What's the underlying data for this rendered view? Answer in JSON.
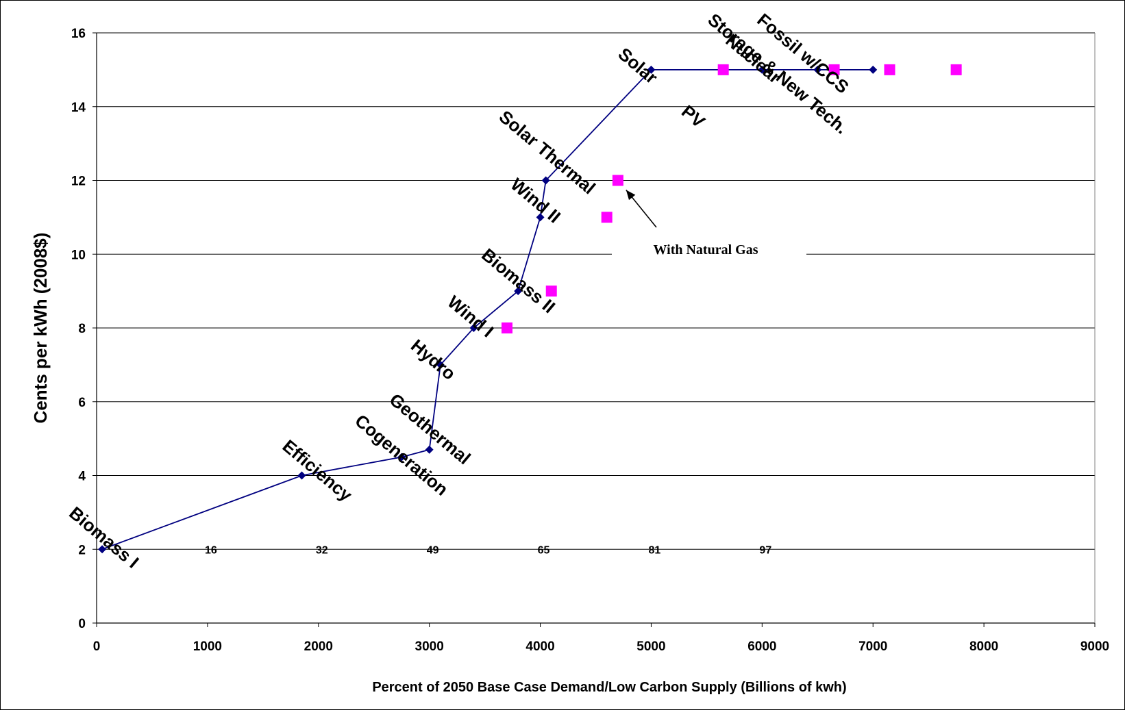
{
  "chart_data": {
    "type": "line",
    "title": "",
    "xlabel": "Percent of 2050 Base Case Demand/Low Carbon Supply (Billions of kwh)",
    "ylabel": "Cents per kWh (2008$)",
    "xlim": [
      0,
      9000
    ],
    "ylim": [
      0,
      16
    ],
    "x_ticks": [
      0,
      1000,
      2000,
      3000,
      4000,
      5000,
      6000,
      7000,
      8000,
      9000
    ],
    "y_ticks": [
      0,
      2,
      4,
      6,
      8,
      10,
      12,
      14,
      16
    ],
    "grid": "horizontal",
    "series": [
      {
        "marker": "diamond",
        "color": "#000080",
        "points": [
          {
            "x": 50,
            "y": 2
          },
          {
            "x": 1850,
            "y": 4
          },
          {
            "x": 2750,
            "y": 4.5
          },
          {
            "x": 3000,
            "y": 4.7
          },
          {
            "x": 3100,
            "y": 7
          },
          {
            "x": 3400,
            "y": 8
          },
          {
            "x": 3800,
            "y": 9
          },
          {
            "x": 4000,
            "y": 11
          },
          {
            "x": 4050,
            "y": 12
          },
          {
            "x": 5000,
            "y": 15
          },
          {
            "x": 6000,
            "y": 15
          },
          {
            "x": 6500,
            "y": 15
          },
          {
            "x": 7000,
            "y": 15
          }
        ]
      },
      {
        "marker": "square",
        "color": "#FF00FF",
        "line": false,
        "points": [
          {
            "x": 3700,
            "y": 8
          },
          {
            "x": 4100,
            "y": 9
          },
          {
            "x": 4600,
            "y": 11
          },
          {
            "x": 4700,
            "y": 12
          },
          {
            "x": 5650,
            "y": 15
          },
          {
            "x": 6650,
            "y": 15
          },
          {
            "x": 7150,
            "y": 15
          },
          {
            "x": 7750,
            "y": 15
          }
        ]
      }
    ],
    "point_labels": [
      {
        "text": "Biomass I",
        "x": 50,
        "y": 2
      },
      {
        "text": "Efficiency",
        "x": 1850,
        "y": 4
      },
      {
        "text": "Cogeneration",
        "x": 2750,
        "y": 4.5
      },
      {
        "text": "Geothermal",
        "x": 3000,
        "y": 4.7
      },
      {
        "text": "Hydro",
        "x": 3100,
        "y": 7
      },
      {
        "text": "Wind I",
        "x": 3400,
        "y": 8
      },
      {
        "text": "Biomass II",
        "x": 3800,
        "y": 9
      },
      {
        "text": "Wind II",
        "x": 4000,
        "y": 11
      },
      {
        "text": "Solar Thermal",
        "x": 4050,
        "y": 12
      },
      {
        "text": "Solar",
        "x": 5000,
        "y": 15
      },
      {
        "text": "PV",
        "x": 5200,
        "y": 14
      },
      {
        "text": "Storage & New Tech.",
        "x": 5500,
        "y": 15
      },
      {
        "text": "Nuclear",
        "x": 6000,
        "y": 15
      },
      {
        "text": "Fossil w/CCS",
        "x": 6500,
        "y": 15
      }
    ],
    "percent_labels": [
      {
        "text": "16",
        "x": 1000,
        "y": 2
      },
      {
        "text": "32",
        "x": 2000,
        "y": 2
      },
      {
        "text": "49",
        "x": 3000,
        "y": 2
      },
      {
        "text": "65",
        "x": 4000,
        "y": 2
      },
      {
        "text": "81",
        "x": 5000,
        "y": 2
      },
      {
        "text": "97",
        "x": 6000,
        "y": 2
      }
    ],
    "annotation": {
      "text": "With Natural Gas",
      "points_to": {
        "x": 4700,
        "y": 12
      }
    }
  }
}
